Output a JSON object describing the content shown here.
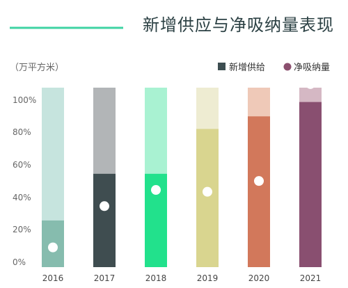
{
  "chart_data": {
    "type": "bar",
    "title": "新增供应与净吸纳量表现",
    "unit_label": "（万平方米）",
    "legend": [
      {
        "name": "新增供给",
        "marker": "square",
        "color": "#3d4e51"
      },
      {
        "name": "净吸纳量",
        "marker": "circle",
        "color": "#8b4f6e"
      }
    ],
    "categories": [
      "2016",
      "2017",
      "2018",
      "2019",
      "2020",
      "2021"
    ],
    "yticks": [
      "100%",
      "80%",
      "60%",
      "40%",
      "20%",
      "0%"
    ],
    "ylim": [
      0,
      100
    ],
    "grid": false,
    "series": [
      {
        "name": "新增供给",
        "values": [
          26,
          52,
          52,
          77,
          84,
          92
        ]
      },
      {
        "name": "净吸纳量",
        "values": [
          11,
          34,
          43,
          42,
          48,
          102
        ]
      }
    ],
    "bar_colors": [
      {
        "top": "#c6e4de",
        "bottom": "#86bcae"
      },
      {
        "top": "#b2b5b7",
        "bottom": "#3f4d50"
      },
      {
        "top": "#a9f2d2",
        "bottom": "#22e18c"
      },
      {
        "top": "#eeecd2",
        "bottom": "#d9d58f"
      },
      {
        "top": "#efc9b8",
        "bottom": "#d2785b"
      },
      {
        "top": "#d5b8c4",
        "bottom": "#894f70"
      }
    ],
    "accent_color": "#3fd3a3"
  }
}
